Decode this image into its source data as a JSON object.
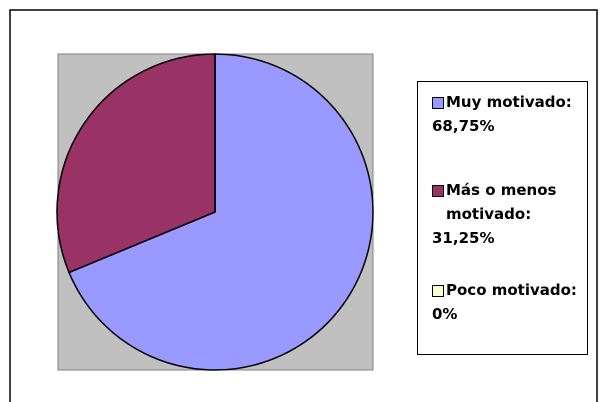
{
  "chart_data": {
    "type": "pie",
    "categories": [
      "Muy motivado:",
      "Más o menos motivado:",
      "Poco motivado:"
    ],
    "values": [
      68.75,
      31.25,
      0
    ],
    "value_labels": [
      "68,75%",
      "31,25%",
      "0%"
    ],
    "colors": [
      "#9999ff",
      "#993366",
      "#ffffcc"
    ],
    "legend": "right"
  }
}
